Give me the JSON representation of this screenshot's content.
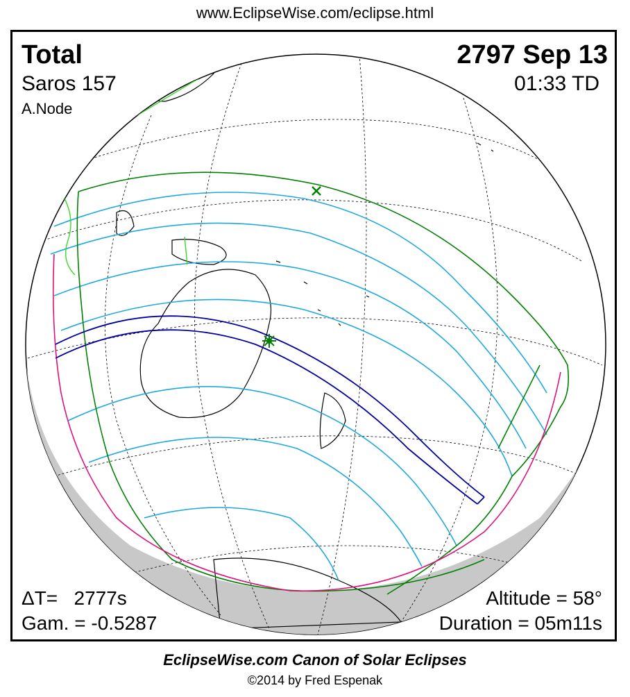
{
  "header": {
    "url": "www.EclipseWise.com/eclipse.html"
  },
  "eclipse": {
    "type": "Total",
    "date": "2797 Sep 13",
    "saros": "Saros 157",
    "time": "01:33 TD",
    "node": "A.Node",
    "delta_t": "ΔT=   2777s",
    "gamma": "Gam. = -0.5287",
    "altitude": "Altitude = 58°",
    "duration": "Duration = 05m11s"
  },
  "footer": {
    "title": "EclipseWise.com Canon of Solar Eclipses",
    "copyright": "©2014 by Fred Espenak"
  },
  "colors": {
    "central_path": "#0000a0",
    "partial_lines": "#1ea8e0",
    "penumbra_limit": "#008000",
    "rise_set": "#e0107a",
    "night_side": "#c8c8c8",
    "coastline": "#000000"
  },
  "icons": {
    "greatest_eclipse": "star-marker-icon",
    "subsolar_point": "x-marker-icon"
  }
}
